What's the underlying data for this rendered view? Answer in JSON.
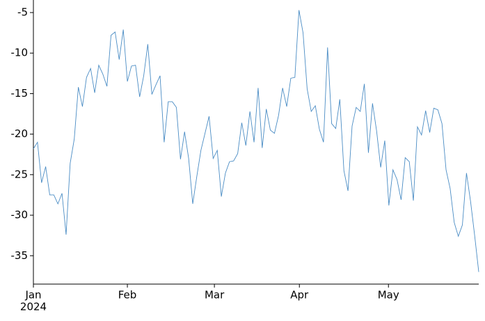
{
  "chart_data": {
    "type": "line",
    "values": [
      -21.8,
      -21.0,
      -26.0,
      -24.0,
      -27.5,
      -27.5,
      -28.6,
      -27.3,
      -32.4,
      -23.6,
      -20.6,
      -14.2,
      -16.6,
      -13.0,
      -11.9,
      -14.9,
      -11.5,
      -12.6,
      -14.1,
      -7.8,
      -7.4,
      -10.8,
      -7.1,
      -13.5,
      -11.6,
      -11.5,
      -15.4,
      -12.8,
      -8.9,
      -15.1,
      -13.9,
      -12.8,
      -21.0,
      -16.0,
      -16.0,
      -16.7,
      -23.1,
      -19.7,
      -23.0,
      -28.6,
      -25.2,
      -22.0,
      -19.9,
      -17.8,
      -23.0,
      -22.0,
      -27.7,
      -24.8,
      -23.4,
      -23.3,
      -22.4,
      -18.6,
      -21.4,
      -17.2,
      -21.0,
      -14.3,
      -21.7,
      -16.9,
      -19.5,
      -19.9,
      -17.7,
      -14.3,
      -16.6,
      -13.1,
      -13.0,
      -4.7,
      -7.5,
      -14.4,
      -17.2,
      -16.5,
      -19.4,
      -21.0,
      -9.3,
      -18.7,
      -19.3,
      -15.7,
      -24.5,
      -27.0,
      -19.0,
      -16.7,
      -17.2,
      -13.8,
      -22.3,
      -16.2,
      -19.6,
      -24.1,
      -20.8,
      -28.8,
      -24.4,
      -25.6,
      -28.1,
      -22.9,
      -23.4,
      -28.2,
      -19.1,
      -20.1,
      -17.1,
      -19.8,
      -16.8,
      -17.0,
      -18.7,
      -24.4,
      -26.7,
      -30.9,
      -32.6,
      -31.2,
      -24.8,
      -28.3,
      -32.5,
      -37.0
    ],
    "color": "#4a8cc4",
    "xlim": [
      0,
      109
    ],
    "xticks": [
      {
        "value": 0,
        "label": "Jan"
      },
      {
        "value": 23,
        "label": "Feb"
      },
      {
        "value": 44.3,
        "label": "Mar"
      },
      {
        "value": 65.1,
        "label": "Apr"
      },
      {
        "value": 86.9,
        "label": "May"
      }
    ],
    "x_year": "2024",
    "ylim": [
      -38.5,
      -3.45
    ],
    "yticks": [
      -35,
      -30,
      -25,
      -20,
      -15,
      -10,
      -5
    ]
  }
}
